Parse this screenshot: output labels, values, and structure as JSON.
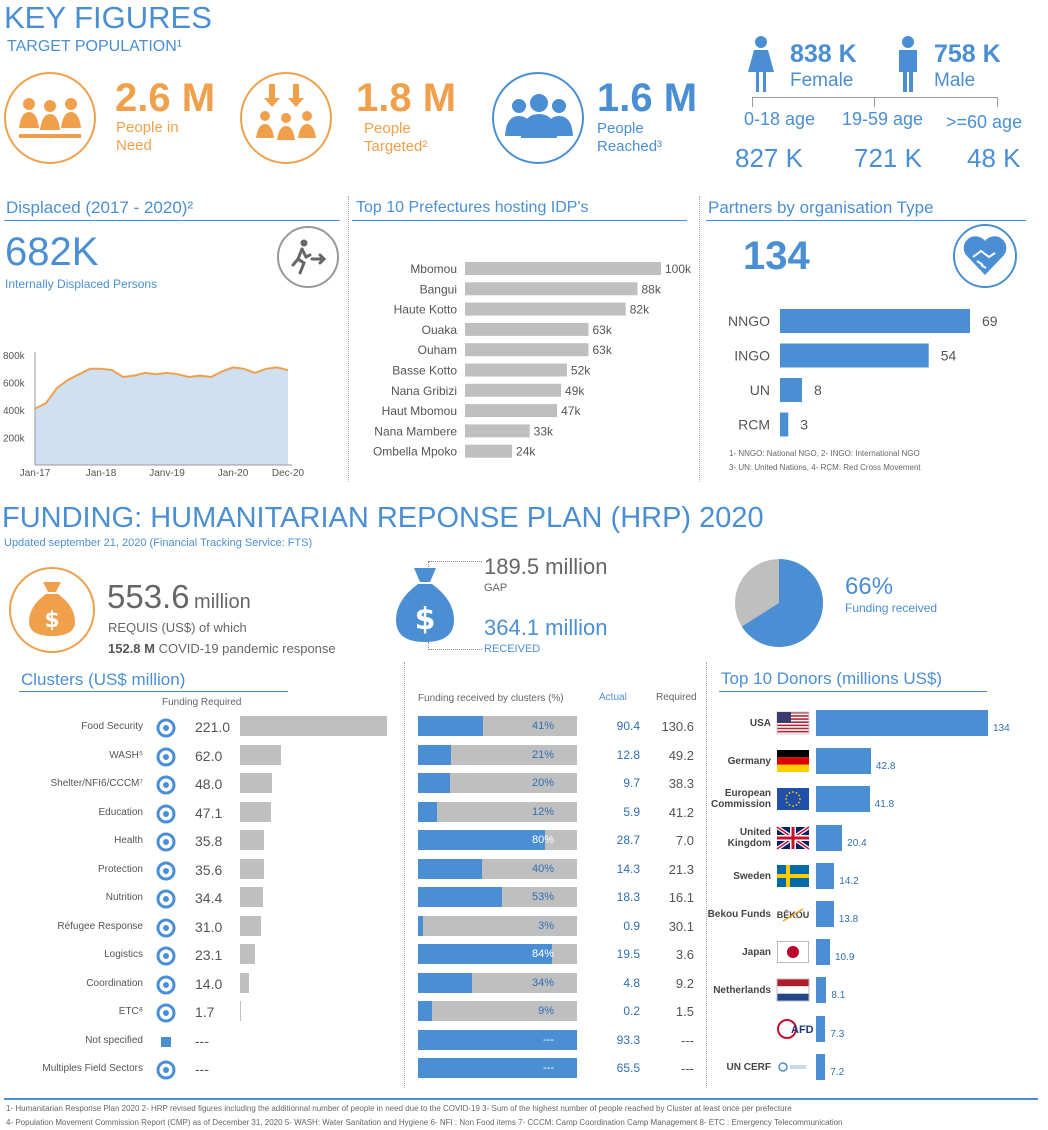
{
  "header": {
    "title": "KEY FIGURES",
    "subtitle": "TARGET POPULATION¹"
  },
  "key_figures": {
    "in_need": {
      "value": "2.6 M",
      "label1": "People in",
      "label2": "Need"
    },
    "targeted": {
      "value": "1.8 M",
      "label1": "People",
      "label2": "Targeted²"
    },
    "reached": {
      "value": "1.6 M",
      "label1": "People",
      "label2": "Reached³"
    },
    "female": {
      "value": "838 K",
      "label": "Female"
    },
    "male": {
      "value": "758 K",
      "label": "Male"
    },
    "ages": [
      {
        "label": "0-18 age",
        "value": "827 K"
      },
      {
        "label": "19-59 age",
        "value": "721 K"
      },
      {
        "label": ">=60 age",
        "value": "48 K"
      }
    ]
  },
  "displaced": {
    "title": "Displaced (2017 - 2020)²",
    "value": "682K",
    "label": "Internally Displaced Persons"
  },
  "prefectures": {
    "title": "Top 10 Prefectures hosting IDP's"
  },
  "partners": {
    "title": "Partners by organisation Type",
    "total": "134",
    "note1": "1- NNGO: National NGO, 2- INGO: International NGO",
    "note2": "3- UN: United Nations, 4- RCM: Red Cross Movement"
  },
  "funding": {
    "title": "FUNDING: HUMANITARIAN REPONSE PLAN (HRP) 2020",
    "updated": "Updated september 21, 2020 (Financial Tracking Service: FTS)",
    "requis_value": "553.6",
    "requis_unit": "million",
    "requis_label": "REQUIS (US$) of which",
    "covid_value": "152.8 M",
    "covid_label": "COVID-19 pandemic response",
    "gap_value": "189.5 million",
    "gap_label": "GAP",
    "received_value": "364.1 million",
    "received_label": "RECEIVED",
    "pct_value": "66%",
    "pct_label": "Funding received",
    "pct_fraction": 0.66
  },
  "clusters": {
    "title": "Clusters (US$ million)",
    "col_required": "Funding Required",
    "col_received_pct": "Funding received by clusters (%)",
    "col_actual": "Actual",
    "col_required2": "Required"
  },
  "donors": {
    "title": "Top 10 Donors (millions US$)"
  },
  "footnotes": {
    "line1": "1- Humanitarian Response Plan 2020     2- HRP revised figures including the additionnal number of people in need due to the COVID-19    3- Sum of the highest number of people reached by Cluster at least once per prefecture",
    "line2": "4-  Population Movement Commission Report (CMP)  as of December 31, 2020  5-  WASH: Water Sanitation and Hygiene    6- NFI : Non Food items    7- CCCM: Camp Coordination Camp Management     8- ETC : Emergency Telecommunication"
  },
  "colors": {
    "blue": "#4a8fd4",
    "orange": "#f0a04b",
    "grey_bar": "#bfbfbf",
    "area_fill": "#cfe0f3",
    "area_line": "#f0a04b"
  },
  "chart_data": [
    {
      "type": "area",
      "name": "idp_trend",
      "x_ticks": [
        "Jan-17",
        "Jan-18",
        "Janv-19",
        "Jan-20",
        "Dec-20"
      ],
      "y_ticks": [
        "800k",
        "600k",
        "400k",
        "200k"
      ],
      "ylim": [
        0,
        800000
      ],
      "x": [
        "2017-01",
        "2017-03",
        "2017-05",
        "2017-07",
        "2017-09",
        "2017-11",
        "2018-01",
        "2018-03",
        "2018-05",
        "2018-07",
        "2018-09",
        "2018-11",
        "2019-01",
        "2019-03",
        "2019-05",
        "2019-07",
        "2019-09",
        "2019-11",
        "2020-01",
        "2020-03",
        "2020-05",
        "2020-07",
        "2020-09",
        "2020-12"
      ],
      "values": [
        410000,
        450000,
        560000,
        620000,
        660000,
        700000,
        700000,
        690000,
        640000,
        650000,
        670000,
        660000,
        670000,
        660000,
        640000,
        650000,
        640000,
        680000,
        710000,
        700000,
        670000,
        700000,
        710000,
        690000
      ]
    },
    {
      "type": "bar",
      "name": "prefectures",
      "orientation": "horizontal",
      "categories": [
        "Mbomou",
        "Bangui",
        "Haute Kotto",
        "Ouaka",
        "Ouham",
        "Basse Kotto",
        "Nana Gribizi",
        "Haut Mbomou",
        "Nana Mambere",
        "Ombella Mpoko"
      ],
      "values": [
        100,
        88,
        82,
        63,
        63,
        52,
        49,
        47,
        33,
        24
      ],
      "labels": [
        "100k",
        "88k",
        "82k",
        "63k",
        "63k",
        "52k",
        "49k",
        "47k",
        "33k",
        "24k"
      ],
      "xlim": [
        0,
        100
      ]
    },
    {
      "type": "bar",
      "name": "partners",
      "orientation": "horizontal",
      "categories": [
        "NNGO",
        "INGO",
        "UN",
        "RCM"
      ],
      "values": [
        69,
        54,
        8,
        3
      ],
      "xlim": [
        0,
        69
      ]
    },
    {
      "type": "pie",
      "name": "funding_pie",
      "categories": [
        "Funding received",
        "GAP"
      ],
      "values": [
        66,
        34
      ]
    },
    {
      "type": "bar",
      "name": "clusters",
      "orientation": "horizontal",
      "categories": [
        "Food Security",
        "WASH⁵",
        "Shelter/NFI6/CCCM⁷",
        "Education",
        "Health",
        "Protection",
        "Nutrition",
        "Réfugee Response",
        "Logistics",
        "Coordination",
        "ETC⁸",
        "Not specified",
        "Multiples Field Sectors"
      ],
      "icons": [
        "food-bowl-icon",
        "water-tap-icon",
        "shelter-icon",
        "education-book-icon",
        "health-caduceus-icon",
        "protection-hands-icon",
        "nutrition-icon",
        "refugee-tent-icon",
        "logistics-truck-plane-icon",
        "coordination-arrows-icon",
        "telecom-antenna-icon",
        "square-icon",
        "network-icon"
      ],
      "required_labels": [
        "221.0",
        "62.0",
        "48.0",
        "47.1",
        "35.8",
        "35.6",
        "34.4",
        "31.0",
        "23.1",
        "14.0",
        "1.7",
        "---",
        "---"
      ],
      "required_values": [
        221.0,
        62.0,
        48.0,
        47.1,
        35.8,
        35.6,
        34.4,
        31.0,
        23.1,
        14.0,
        1.7,
        0,
        0
      ],
      "received_pct": [
        41,
        21,
        20,
        12,
        80,
        40,
        53,
        3,
        84,
        34,
        9,
        100,
        100
      ],
      "received_pct_labels": [
        "41%",
        "21%",
        "20%",
        "12%",
        "80%",
        "40%",
        "53%",
        "3%",
        "84%",
        "34%",
        "9%",
        "---",
        "---"
      ],
      "actual": [
        "90.4",
        "12.8",
        "9.7",
        "5.9",
        "28.7",
        "14.3",
        "18.3",
        "0.9",
        "19.5",
        "4.8",
        "0.2",
        "93.3",
        "65.5"
      ],
      "required": [
        "130.6",
        "49.2",
        "38.3",
        "41.2",
        "7.0",
        "21.3",
        "16.1",
        "30.1",
        "3.6",
        "9.2",
        "1.5",
        "---",
        "---"
      ]
    },
    {
      "type": "bar",
      "name": "donors",
      "orientation": "horizontal",
      "categories": [
        "USA",
        "Germany",
        "European Commission",
        "United Kingdom",
        "Sweden",
        "Bekou Funds",
        "Japan",
        "Netherlands",
        "AFD",
        "UN CERF"
      ],
      "category_lines": [
        [
          "USA"
        ],
        [
          "Germany"
        ],
        [
          "European",
          "Commission"
        ],
        [
          "United",
          "Kingdom"
        ],
        [
          "Sweden"
        ],
        [
          "Bekou Funds"
        ],
        [
          "Japan"
        ],
        [
          "Netherlands"
        ],
        [],
        [
          "UN CERF"
        ]
      ],
      "logo_texts": [
        "",
        "",
        "",
        "",
        "",
        "BÊKOU",
        "",
        "",
        "AFD",
        ""
      ],
      "flags": [
        "usa-flag-icon",
        "germany-flag-icon",
        "eu-flag-icon",
        "uk-flag-icon",
        "sweden-flag-icon",
        "bekou-logo-icon",
        "japan-flag-icon",
        "netherlands-flag-icon",
        "afd-logo-icon",
        "un-cerf-logo-icon"
      ],
      "values": [
        134,
        42.8,
        41.8,
        20.4,
        14.2,
        13.8,
        10.9,
        8.1,
        7.3,
        7.2
      ],
      "labels": [
        "134",
        "42.8",
        "41.8",
        "20.4",
        "14.2",
        "13.8",
        "10.9",
        "8.1",
        "7.3",
        "7.2"
      ],
      "xlim": [
        0,
        134
      ]
    }
  ]
}
